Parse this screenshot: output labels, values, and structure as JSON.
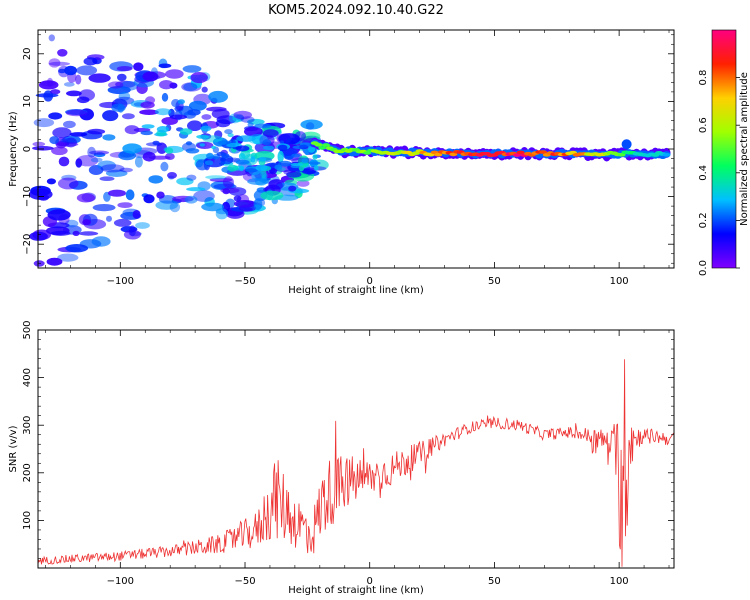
{
  "figure_title": "KOM5.2024.092.10.40.G22",
  "chart_data": [
    {
      "type": "heatmap",
      "xlabel": "Height of straight line (km)",
      "ylabel": "Frequency (Hz)",
      "xlim": [
        -133,
        122
      ],
      "ylim": [
        -25,
        25
      ],
      "xticks": [
        -100,
        -50,
        0,
        50,
        100
      ],
      "yticks": [
        -20,
        -10,
        0,
        10,
        20
      ],
      "colorbar": {
        "label": "Normalized spectral amplitude",
        "range": [
          0,
          1
        ],
        "ticks": [
          "0.0",
          "0.2",
          "0.4",
          "0.6",
          "0.8"
        ],
        "colormap": [
          "#8000ff",
          "#0000ff",
          "#00c0ff",
          "#00ff60",
          "#a0ff00",
          "#ffd000",
          "#ff2000",
          "#ff0080"
        ]
      },
      "ridge": [
        {
          "x": -22,
          "freq": 1.0,
          "amp": 0.5
        },
        {
          "x": -10,
          "freq": -0.5,
          "amp": 0.6
        },
        {
          "x": 0,
          "freq": -0.5,
          "amp": 0.55
        },
        {
          "x": 20,
          "freq": -0.8,
          "amp": 0.7
        },
        {
          "x": 40,
          "freq": -1.0,
          "amp": 0.85
        },
        {
          "x": 60,
          "freq": -1.0,
          "amp": 0.95
        },
        {
          "x": 80,
          "freq": -1.0,
          "amp": 0.8
        },
        {
          "x": 95,
          "freq": -1.2,
          "amp": 0.6
        },
        {
          "x": 105,
          "freq": -1.0,
          "amp": 0.4
        },
        {
          "x": 120,
          "freq": -1.2,
          "amp": 0.3
        }
      ],
      "scatter_region": {
        "x": [
          -133,
          -20
        ],
        "freq": [
          -25,
          25
        ],
        "amp": [
          0.05,
          0.4
        ]
      }
    },
    {
      "type": "line",
      "xlabel": "Height of straight line (km)",
      "ylabel": "SNR (v/v)",
      "xlim": [
        -133,
        122
      ],
      "ylim": [
        0,
        500
      ],
      "xticks": [
        -100,
        -50,
        0,
        50,
        100
      ],
      "yticks": [
        100,
        200,
        300,
        400,
        500
      ],
      "color": "#ee3333",
      "envelope": {
        "x": [
          -133,
          -100,
          -80,
          -60,
          -45,
          -38,
          -30,
          -23,
          -18,
          -10,
          0,
          10,
          20,
          30,
          40,
          50,
          60,
          70,
          80,
          90,
          98,
          100,
          102,
          104,
          106,
          110,
          122
        ],
        "mean": [
          15,
          25,
          35,
          50,
          80,
          150,
          100,
          70,
          150,
          180,
          190,
          210,
          240,
          270,
          295,
          305,
          300,
          280,
          285,
          275,
          260,
          200,
          150,
          280,
          270,
          280,
          270
        ],
        "spread": [
          8,
          10,
          12,
          20,
          40,
          90,
          60,
          50,
          80,
          60,
          40,
          35,
          25,
          15,
          12,
          12,
          12,
          12,
          12,
          20,
          30,
          150,
          250,
          120,
          30,
          15,
          15
        ]
      }
    }
  ]
}
